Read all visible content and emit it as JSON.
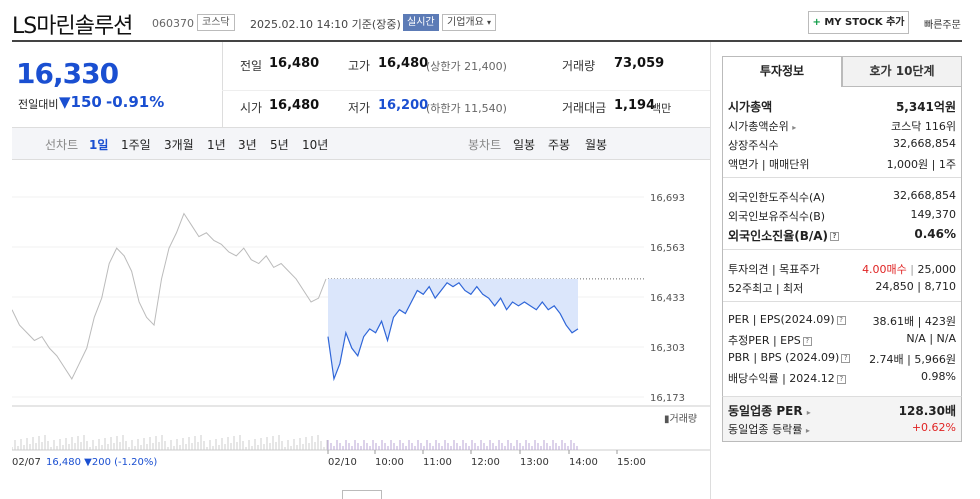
{
  "header": {
    "name": "LS마린솔루션",
    "code": "060370",
    "market_tag": "코스닥",
    "timestamp": "2025.02.10 14:10 기준(장중)",
    "live_badge": "실시간",
    "company_info": "기업개요",
    "mystock_plus": "+",
    "mystock_label": "MY STOCK 추가",
    "quick_order": "빠른주문"
  },
  "quote": {
    "price": "16,330",
    "change_label": "전일대비",
    "change_value": "▼150",
    "change_pct": "-0.91%",
    "prev_close_label": "전일",
    "prev_close": "16,480",
    "high_label": "고가",
    "high": "16,480",
    "upper_limit": "(상한가 21,400)",
    "volume_label": "거래량",
    "volume": "73,059",
    "open_label": "시가",
    "open": "16,480",
    "low_label": "저가",
    "low": "16,200",
    "lower_limit": "(하한가 11,540)",
    "amount_label": "거래대금",
    "amount": "1,194",
    "amount_unit": "백만"
  },
  "periods": {
    "line_label": "선차트",
    "items": [
      "1일",
      "1주일",
      "3개월",
      "1년",
      "3년",
      "5년",
      "10년"
    ],
    "selected": "1일",
    "candle_label": "봉차트",
    "candle_items": [
      "일봉",
      "주봉",
      "월봉"
    ]
  },
  "chart_data": {
    "type": "line",
    "y_ticks": [
      "16,693",
      "16,563",
      "16,433",
      "16,303",
      "16,173"
    ],
    "ylim": [
      16173,
      16693
    ],
    "x_ticks": [
      "02/10",
      "10:00",
      "11:00",
      "12:00",
      "13:00",
      "14:00",
      "15:00"
    ],
    "volume_label": "거래량",
    "prev_day_caption": "02/07",
    "prev_day_close": "16,480",
    "prev_day_change": "▼200",
    "prev_day_pct": "(-1.20%)",
    "baseline": 16480,
    "prev_day_series": [
      16400,
      16360,
      16340,
      16320,
      16330,
      16300,
      16280,
      16250,
      16220,
      16260,
      16300,
      16380,
      16430,
      16520,
      16560,
      16540,
      16500,
      16420,
      16380,
      16360,
      16480,
      16560,
      16600,
      16650,
      16620,
      16590,
      16600,
      16580,
      16570,
      16550,
      16540,
      16560,
      16530,
      16520,
      16540,
      16510,
      16520,
      16500,
      16480,
      16450,
      16420,
      16430,
      16480
    ],
    "today_series": [
      16330,
      16220,
      16260,
      16340,
      16300,
      16280,
      16330,
      16350,
      16340,
      16370,
      16320,
      16380,
      16400,
      16390,
      16420,
      16450,
      16440,
      16460,
      16430,
      16450,
      16470,
      16460,
      16470,
      16450,
      16440,
      16460,
      16440,
      16430,
      16410,
      16430,
      16400,
      16420,
      16410,
      16420,
      16410,
      16400,
      16420,
      16400,
      16410,
      16390,
      16360,
      16340,
      16350
    ]
  },
  "invest": {
    "tab_on": "투자정보",
    "tab_off": "호가 10단계",
    "rows": [
      {
        "label": "시가총액",
        "value": "5,341억원"
      },
      {
        "label": "시가총액순위",
        "value": "코스닥 116위"
      },
      {
        "label": "상장주식수",
        "value": "32,668,854"
      },
      {
        "label": "액면가 | 매매단위",
        "value": "1,000원  |  1주"
      },
      {
        "label": "외국인한도주식수(A)",
        "value": "32,668,854"
      },
      {
        "label": "외국인보유주식수(B)",
        "value": "149,370"
      },
      {
        "label": "외국인소진율(B/A)",
        "value": "0.46%"
      },
      {
        "label": "투자의견 | 목표주가",
        "value_a": "4.00매수",
        "value_b": "25,000"
      },
      {
        "label": "52주최고 | 최저",
        "value": "24,850  |  8,710"
      },
      {
        "label": "PER | EPS(2024.09)",
        "value": "38.61배  |  423원"
      },
      {
        "label": "추정PER | EPS",
        "value": "N/A  |  N/A"
      },
      {
        "label": "PBR | BPS (2024.09)",
        "value": "2.74배  |  5,966원"
      },
      {
        "label": "배당수익률 | 2024.12",
        "value": "0.98%"
      },
      {
        "label": "동일업종 PER",
        "value": "128.30배"
      },
      {
        "label": "동일업종 등락률",
        "value": "+0.62%"
      }
    ]
  },
  "colors": {
    "down": "#1a4fd1",
    "up": "#e02424",
    "area": "#dbe6fb"
  }
}
